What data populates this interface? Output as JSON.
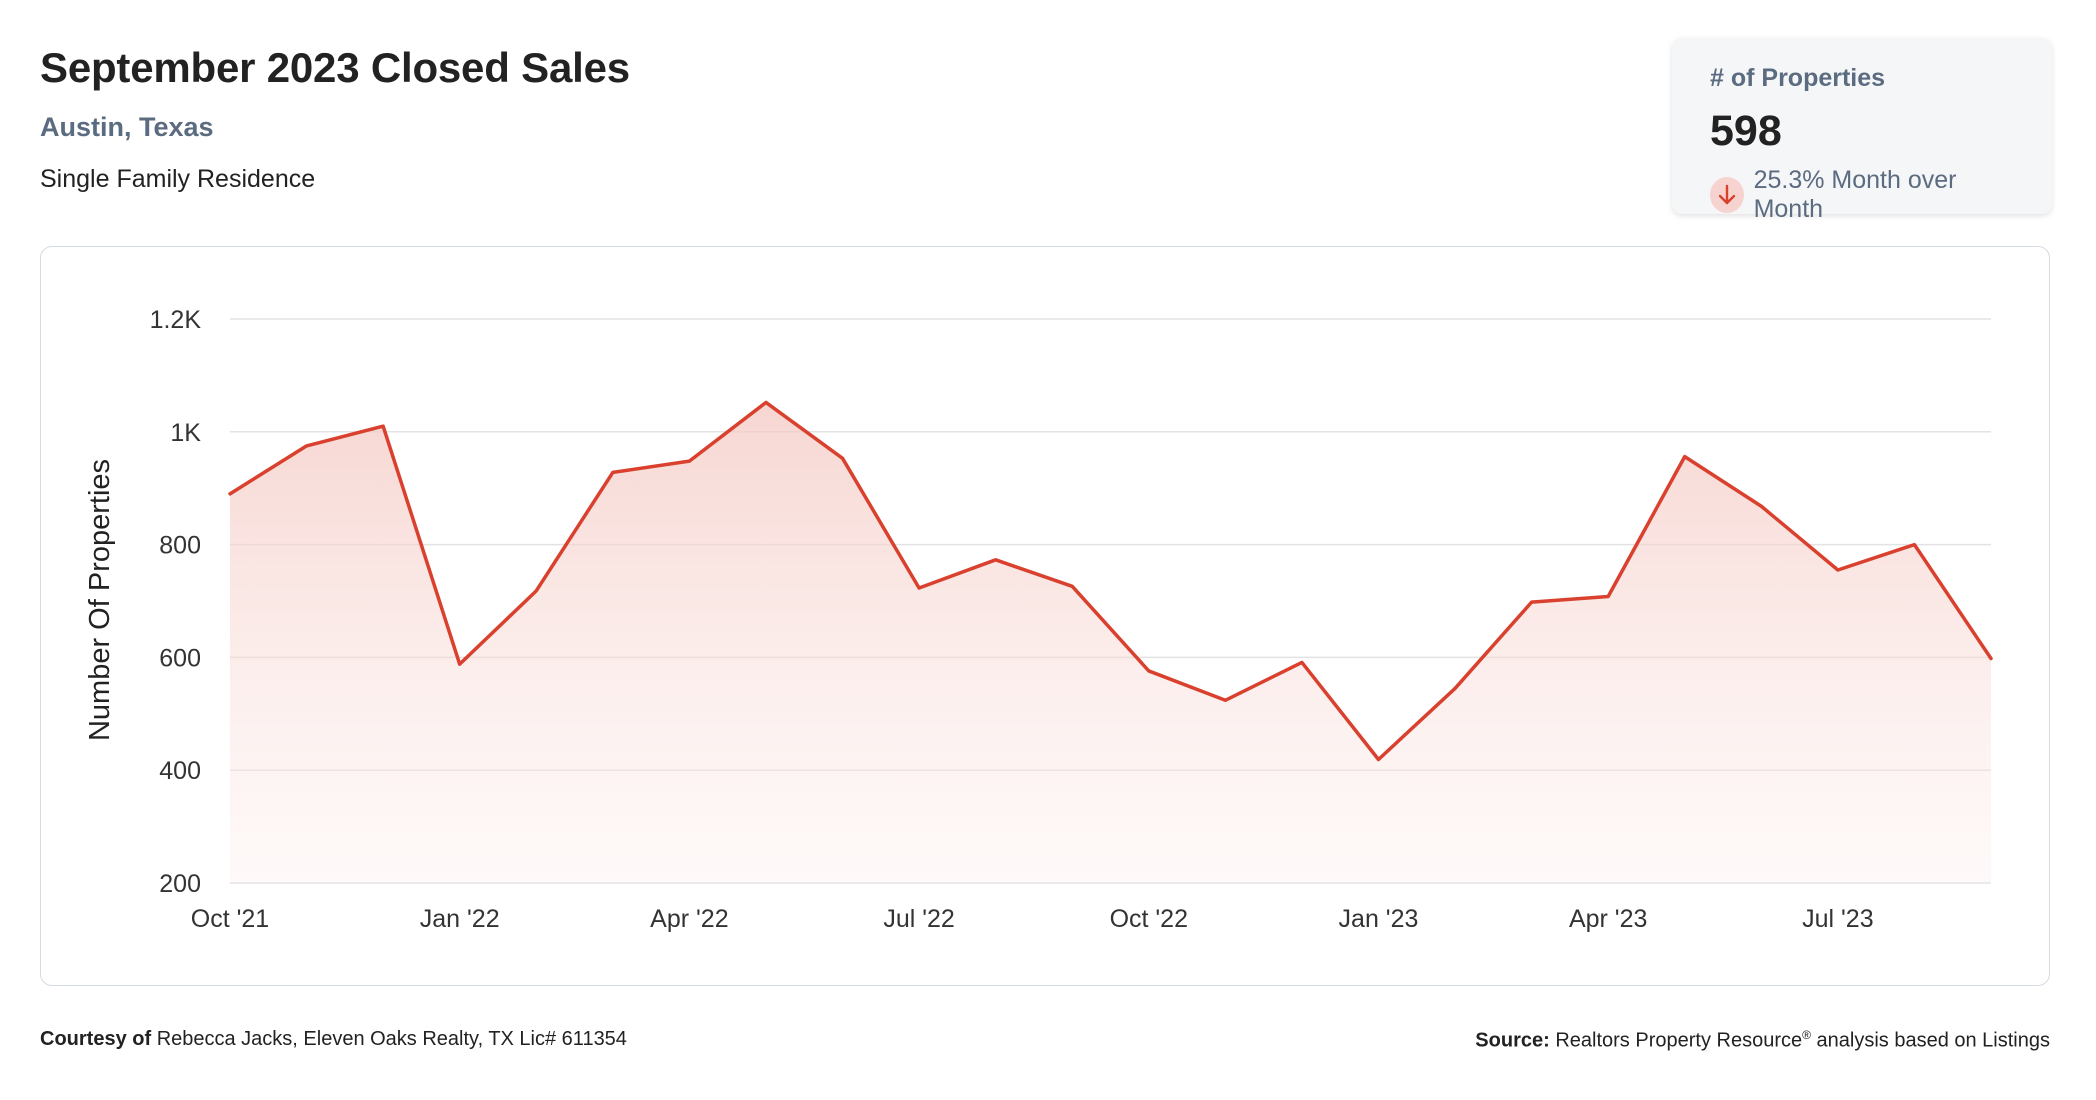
{
  "header": {
    "title": "September 2023 Closed Sales",
    "location": "Austin, Texas",
    "property_type": "Single Family Residence"
  },
  "stat_card": {
    "label": "# of Properties",
    "value": "598",
    "change_text": "25.3% Month over Month",
    "change_direction": "down",
    "change_icon": "arrow-down-icon"
  },
  "colors": {
    "line": "#d9412e",
    "area_top": "#f4c8c2",
    "grid": "#e3e3e3",
    "badge_bg": "#f7d3cf"
  },
  "chart_data": {
    "type": "area",
    "title": "",
    "xlabel": "",
    "ylabel": "Number Of Properties",
    "ylim": [
      200,
      1200
    ],
    "y_ticks": [
      200,
      400,
      600,
      800,
      1000,
      1200
    ],
    "y_tick_labels": [
      "200",
      "400",
      "600",
      "800",
      "1K",
      "1.2K"
    ],
    "x_tick_labels": [
      "Oct '21",
      "Jan '22",
      "Apr '22",
      "Jul '22",
      "Oct '22",
      "Jan '23",
      "Apr '23",
      "Jul '23"
    ],
    "x": [
      "2021-10",
      "2021-11",
      "2021-12",
      "2022-01",
      "2022-02",
      "2022-03",
      "2022-04",
      "2022-05",
      "2022-06",
      "2022-07",
      "2022-08",
      "2022-09",
      "2022-10",
      "2022-11",
      "2022-12",
      "2023-01",
      "2023-02",
      "2023-03",
      "2023-04",
      "2023-05",
      "2023-06",
      "2023-07",
      "2023-08",
      "2023-09"
    ],
    "values": [
      890,
      975,
      1010,
      588,
      718,
      928,
      948,
      1052,
      953,
      723,
      773,
      726,
      576,
      524,
      591,
      419,
      545,
      698,
      708,
      956,
      868,
      755,
      800,
      598
    ],
    "grid": true,
    "legend": "none"
  },
  "footer": {
    "courtesy_label": "Courtesy of",
    "courtesy_text": "Rebecca Jacks, Eleven Oaks Realty, TX Lic# 611354",
    "source_label": "Source:",
    "source_text_a": "Realtors Property Resource",
    "source_sup": "®",
    "source_text_b": " analysis based on Listings"
  }
}
